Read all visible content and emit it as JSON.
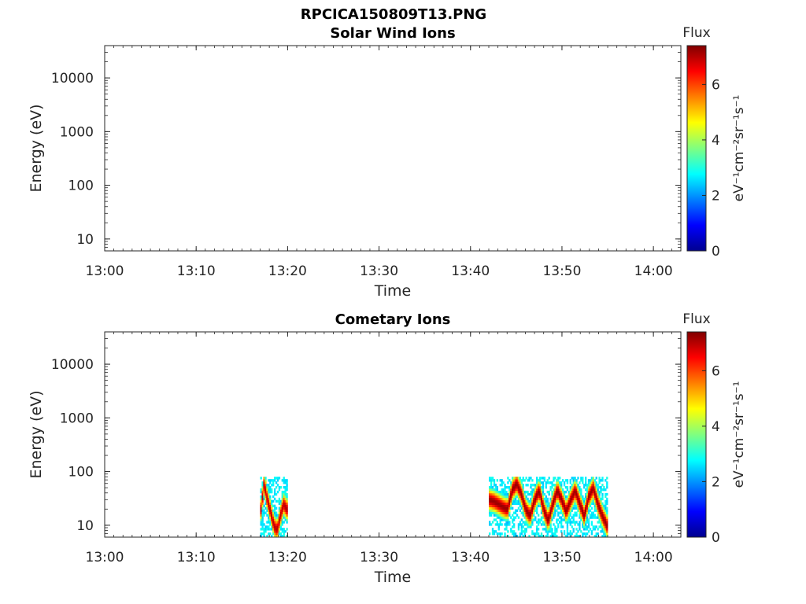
{
  "figure": {
    "filename": "RPCICA150809T13.PNG"
  },
  "colorbar": {
    "label": "Flux",
    "unit_label": "eV⁻¹cm⁻²sr⁻¹s⁻¹",
    "ticks": [
      "0",
      "2",
      "4",
      "6"
    ],
    "range": [
      0,
      7.4
    ],
    "colormap": "jet"
  },
  "chart_data": [
    {
      "type": "heatmap",
      "title": "Solar Wind Ions",
      "xlabel": "Time",
      "ylabel": "Energy (eV)",
      "x_ticks": [
        "13:00",
        "13:10",
        "13:20",
        "13:30",
        "13:40",
        "13:50",
        "14:00"
      ],
      "y_ticks": [
        "10",
        "100",
        "1000",
        "10000"
      ],
      "y_scale": "log",
      "ylim": [
        6,
        40000
      ],
      "xlim": [
        "13:00",
        "14:03"
      ],
      "blocks": []
    },
    {
      "type": "heatmap",
      "title": "Cometary Ions",
      "xlabel": "Time",
      "ylabel": "Energy (eV)",
      "x_ticks": [
        "13:00",
        "13:10",
        "13:20",
        "13:30",
        "13:40",
        "13:50",
        "14:00"
      ],
      "y_ticks": [
        "10",
        "100",
        "1000",
        "10000"
      ],
      "y_scale": "log",
      "ylim": [
        6,
        40000
      ],
      "xlim": [
        "13:00",
        "14:03"
      ],
      "blocks": [
        {
          "start": "13:17",
          "end": "13:20",
          "energy_range_eV": [
            6,
            80
          ],
          "peak_energy_eV": [
            20,
            60,
            30,
            18,
            10,
            8,
            15,
            25,
            20
          ],
          "peak_flux": 7.0
        },
        {
          "start": "13:42",
          "end": "13:55",
          "energy_range_eV": [
            6,
            80
          ],
          "peak_energy_eV": [
            30,
            28,
            25,
            22,
            20,
            45,
            60,
            40,
            20,
            15,
            30,
            45,
            20,
            12,
            25,
            45,
            30,
            18,
            30,
            45,
            25,
            15,
            35,
            50,
            25,
            15,
            10
          ],
          "peak_flux": 7.2
        }
      ]
    }
  ]
}
